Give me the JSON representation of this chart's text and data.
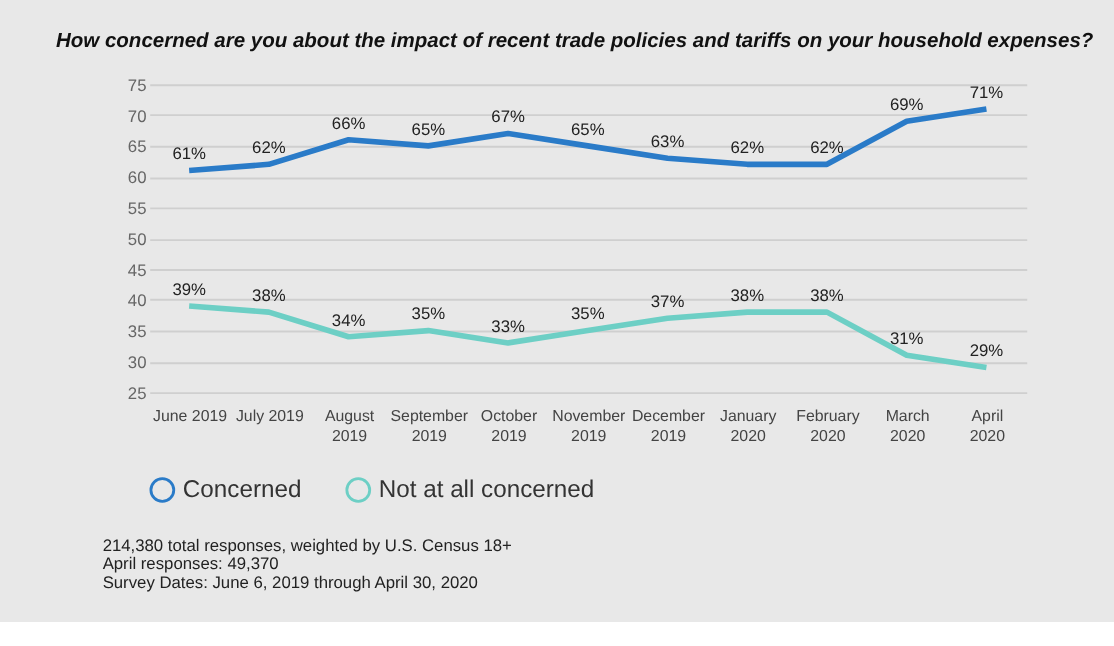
{
  "chart_data": {
    "type": "line",
    "title": "How concerned are you about the impact of recent trade policies and tariffs on your household expenses?",
    "categories": [
      "June 2019",
      "July 2019",
      "August 2019",
      "September 2019",
      "October 2019",
      "November 2019",
      "December 2019",
      "January 2020",
      "February 2020",
      "March 2020",
      "April 2020"
    ],
    "series": [
      {
        "name": "Concerned",
        "color": "#2a7bc8",
        "values": [
          61,
          62,
          66,
          65,
          67,
          65,
          63,
          62,
          62,
          69,
          71
        ],
        "value_labels": [
          "61%",
          "62%",
          "66%",
          "65%",
          "67%",
          "65%",
          "63%",
          "62%",
          "62%",
          "69%",
          "71%"
        ]
      },
      {
        "name": "Not at all concerned",
        "color": "#6dcfc5",
        "values": [
          39,
          38,
          34,
          35,
          33,
          35,
          37,
          38,
          38,
          31,
          29
        ],
        "value_labels": [
          "39%",
          "38%",
          "34%",
          "35%",
          "33%",
          "35%",
          "37%",
          "38%",
          "38%",
          "31%",
          "29%"
        ]
      }
    ],
    "ylim": [
      25,
      75
    ],
    "yticks": [
      25,
      30,
      35,
      40,
      45,
      50,
      55,
      60,
      65,
      70,
      75
    ],
    "grid": "y",
    "legend": "bottom",
    "annotations": [
      "214,380 total responses, weighted by U.S. Census 18+",
      "April responses: 49,370",
      "Survey Dates: June 6, 2019 through April 30, 2020"
    ]
  }
}
